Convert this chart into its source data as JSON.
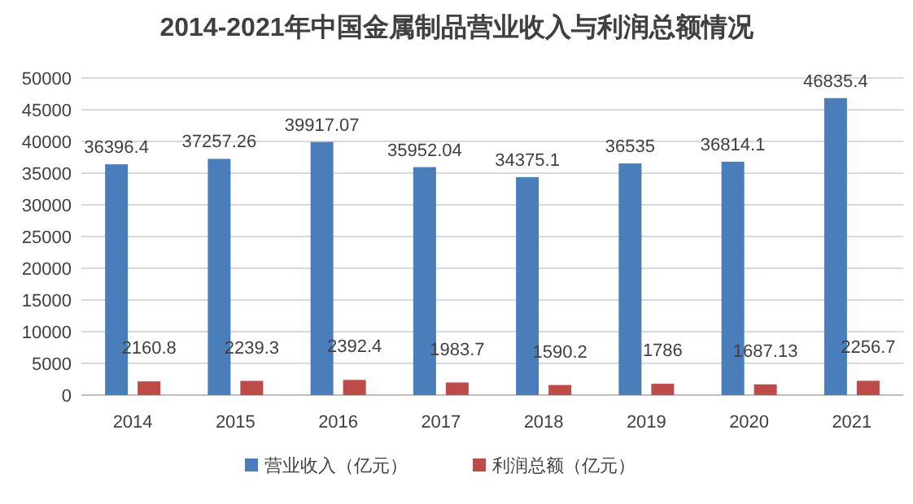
{
  "chart_data": {
    "type": "bar",
    "title": "2014-2021年中国金属制品营业收入与利润总额情况",
    "categories": [
      "2014",
      "2015",
      "2016",
      "2017",
      "2018",
      "2019",
      "2020",
      "2021"
    ],
    "series": [
      {
        "name": "营业收入（亿元）",
        "color": "#4a7ebb",
        "values": [
          36396.4,
          37257.26,
          39917.07,
          35952.04,
          34375.1,
          36535,
          36814.1,
          46835.4
        ]
      },
      {
        "name": "利润总额（亿元）",
        "color": "#be4b48",
        "values": [
          2160.8,
          2239.3,
          2392.4,
          1983.7,
          1590.2,
          1786,
          1687.13,
          2256.7
        ]
      }
    ],
    "ylim": [
      0,
      50000
    ],
    "yticks": [
      0,
      5000,
      10000,
      15000,
      20000,
      25000,
      30000,
      35000,
      40000,
      45000,
      50000
    ],
    "grid": "y",
    "legend": "bottom",
    "data_labels": true
  }
}
